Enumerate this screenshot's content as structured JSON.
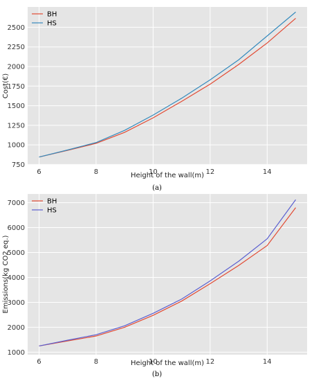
{
  "chart_data": [
    {
      "type": "line",
      "panel_label": "(a)",
      "xlabel": "Height of the wall(m)",
      "ylabel": "Cost(€)",
      "xlim": [
        5.6,
        15.4
      ],
      "ylim": [
        745,
        2760
      ],
      "xticks": [
        6,
        8,
        10,
        12,
        14
      ],
      "yticks": [
        750,
        1000,
        1250,
        1500,
        1750,
        2000,
        2250,
        2500
      ],
      "grid": true,
      "legend_position": "top-left",
      "x": [
        6,
        7,
        8,
        9,
        10,
        11,
        12,
        13,
        14,
        15
      ],
      "series": [
        {
          "name": "BH",
          "color": "#e24a33",
          "values": [
            845,
            930,
            1020,
            1160,
            1345,
            1555,
            1775,
            2025,
            2300,
            2615
          ]
        },
        {
          "name": "HS",
          "color": "#348abd",
          "values": [
            845,
            935,
            1030,
            1185,
            1380,
            1595,
            1830,
            2085,
            2390,
            2695
          ]
        }
      ]
    },
    {
      "type": "line",
      "panel_label": "(b)",
      "xlabel": "Height of the wall(m)",
      "ylabel": "Emissions(kg CO2 eq.)",
      "xlim": [
        5.6,
        15.4
      ],
      "ylim": [
        900,
        7350
      ],
      "xticks": [
        6,
        8,
        10,
        12,
        14
      ],
      "yticks": [
        1000,
        2000,
        3000,
        4000,
        5000,
        6000,
        7000
      ],
      "grid": true,
      "legend_position": "top-left",
      "x": [
        6,
        7,
        8,
        9,
        10,
        11,
        12,
        13,
        14,
        15
      ],
      "series": [
        {
          "name": "BH",
          "color": "#e24a33",
          "values": [
            1250,
            1450,
            1650,
            2000,
            2480,
            3050,
            3750,
            4480,
            5280,
            6800
          ]
        },
        {
          "name": "HS",
          "color": "#5a5fd0",
          "values": [
            1250,
            1480,
            1700,
            2060,
            2560,
            3130,
            3860,
            4650,
            5550,
            7120
          ]
        }
      ]
    }
  ]
}
